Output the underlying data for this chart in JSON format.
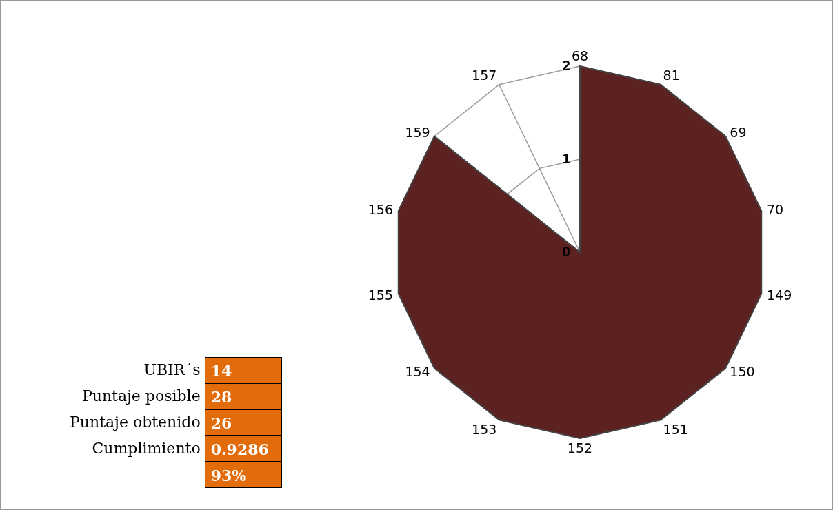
{
  "chart_data": {
    "type": "radar",
    "categories": [
      "68",
      "81",
      "69",
      "70",
      "149",
      "150",
      "151",
      "152",
      "153",
      "154",
      "155",
      "156",
      "159",
      "157"
    ],
    "series": [
      {
        "color": "#5c2222",
        "values": [
          2,
          2,
          2,
          2,
          2,
          2,
          2,
          2,
          2,
          2,
          2,
          2,
          2,
          0
        ]
      }
    ],
    "ylim": [
      0,
      2
    ],
    "yticks": [
      0,
      1,
      2
    ],
    "grid": true,
    "annotations": [
      "UBIR´s",
      "14",
      "Puntaje posible",
      "28",
      "Puntaje obtenido",
      "26",
      "Cumplimiento",
      "0.9286",
      "93%"
    ]
  }
}
